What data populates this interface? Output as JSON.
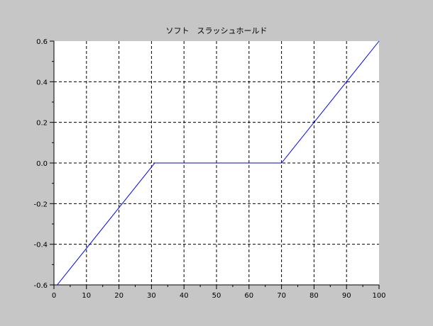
{
  "chart_data": {
    "type": "line",
    "title": "ソフト　スラッシュホールド",
    "xlabel": "",
    "ylabel": "",
    "xlim": [
      0,
      100
    ],
    "ylim": [
      -0.6,
      0.6
    ],
    "x_ticks": [
      0,
      10,
      20,
      30,
      40,
      50,
      60,
      70,
      80,
      90,
      100
    ],
    "x_tick_labels": [
      "0",
      "10",
      "20",
      "30",
      "40",
      "50",
      "60",
      "70",
      "80",
      "90",
      "100"
    ],
    "y_ticks": [
      -0.6,
      -0.4,
      -0.2,
      0.0,
      0.2,
      0.4,
      0.6
    ],
    "y_tick_labels": [
      "-0.6",
      "-0.4",
      "-0.2",
      "0.0",
      "0.2",
      "0.4",
      "0.6"
    ],
    "grid": true,
    "series": [
      {
        "color": "#0000ff",
        "x": [
          1,
          31,
          70,
          100
        ],
        "y": [
          -0.6,
          0.0,
          0.0,
          0.6
        ]
      }
    ]
  },
  "colors": {
    "background": "#c6c6c6",
    "plot_area": "#ffffff",
    "axis": "#000000",
    "grid": "#000000",
    "series": "#0000ff"
  }
}
